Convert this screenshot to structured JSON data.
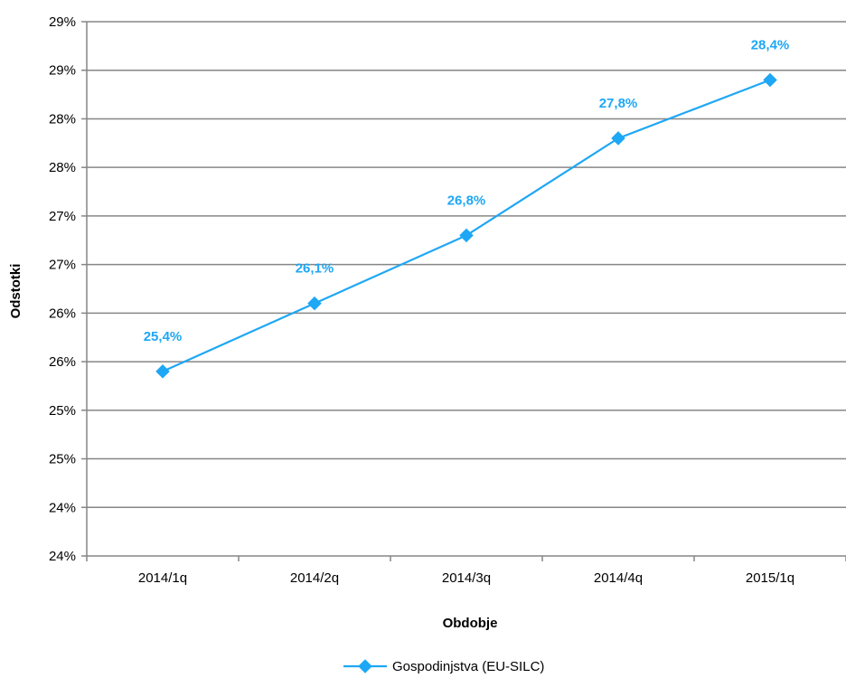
{
  "chart_data": {
    "type": "line",
    "categories": [
      "2014/1q",
      "2014/2q",
      "2014/3q",
      "2014/4q",
      "2015/1q"
    ],
    "series": [
      {
        "name": "Gospodinjstva (EU-SILC)",
        "values": [
          25.4,
          26.1,
          26.8,
          27.8,
          28.4
        ],
        "data_labels": [
          "25,4%",
          "26,1%",
          "26,8%",
          "27,8%",
          "28,4%"
        ],
        "color": "#1ea7f5"
      }
    ],
    "xlabel": "Obdobje",
    "ylabel": "Odstotki",
    "ylim": [
      23.5,
      29.0
    ],
    "yticks": [
      23.5,
      24.0,
      24.5,
      25.0,
      25.5,
      26.0,
      26.5,
      27.0,
      27.5,
      28.0,
      28.5,
      29.0
    ],
    "ytick_labels": [
      "24%",
      "24%",
      "25%",
      "25%",
      "26%",
      "26%",
      "27%",
      "27%",
      "28%",
      "28%",
      "29%",
      "29%"
    ],
    "grid": true,
    "legend_position": "bottom-center",
    "colors": {
      "series": "#1ea7f5",
      "grid": "#868686",
      "axis": "#868686"
    }
  }
}
